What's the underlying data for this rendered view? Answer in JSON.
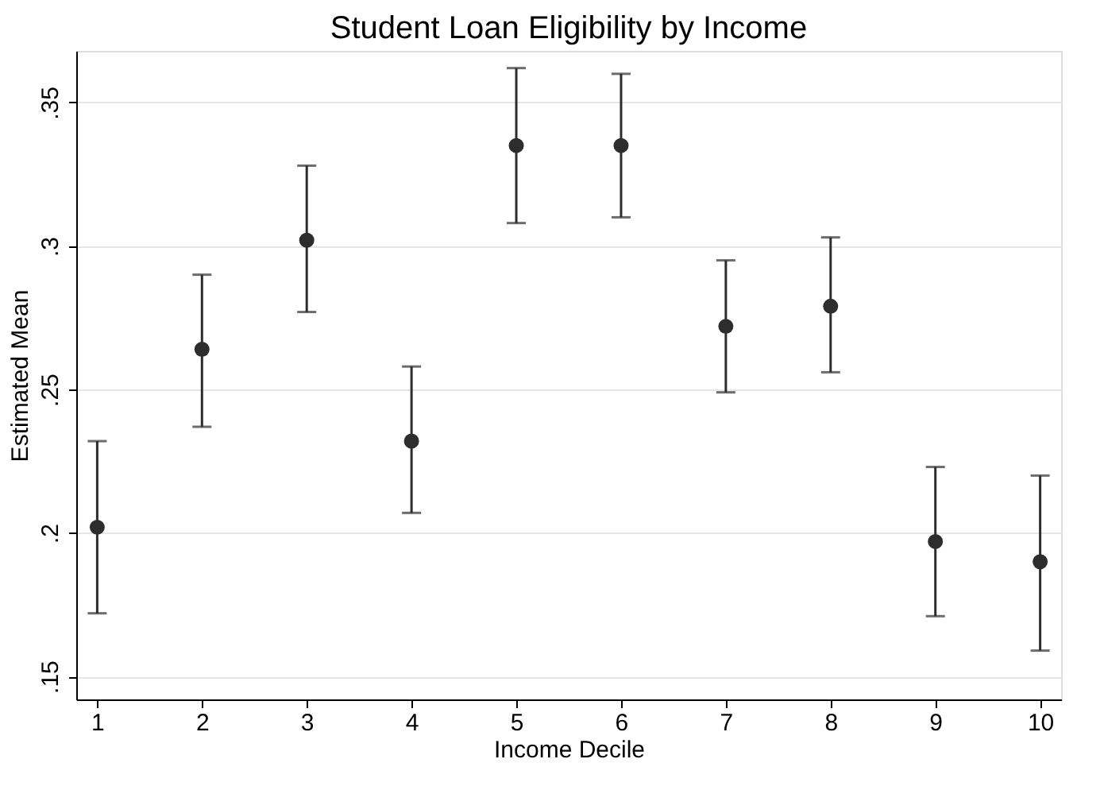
{
  "chart_data": {
    "type": "scatter",
    "title": "Student Loan Eligibility by Income",
    "xlabel": "Income Decile",
    "ylabel": "Estimated Mean",
    "x": [
      1,
      2,
      3,
      4,
      5,
      6,
      7,
      8,
      9,
      10
    ],
    "series": [
      {
        "color": "#2d2d2d",
        "values": [
          0.202,
          0.264,
          0.302,
          0.232,
          0.335,
          0.335,
          0.272,
          0.279,
          0.197,
          0.19
        ],
        "errors": [
          [
            0.172,
            0.232
          ],
          [
            0.237,
            0.29
          ],
          [
            0.277,
            0.328
          ],
          [
            0.207,
            0.258
          ],
          [
            0.308,
            0.362
          ],
          [
            0.31,
            0.36
          ],
          [
            0.249,
            0.295
          ],
          [
            0.256,
            0.303
          ],
          [
            0.171,
            0.223
          ],
          [
            0.159,
            0.22
          ]
        ]
      }
    ],
    "xlim": [
      0.8,
      10.2
    ],
    "xticks": [
      1,
      2,
      3,
      4,
      5,
      6,
      7,
      8,
      9,
      10
    ],
    "ylim": [
      0.142,
      0.368
    ],
    "yticks": [
      {
        "value": 0.15,
        "label": ".15"
      },
      {
        "value": 0.2,
        "label": ".2"
      },
      {
        "value": 0.25,
        "label": ".25"
      },
      {
        "value": 0.3,
        "label": ".3"
      },
      {
        "value": 0.35,
        "label": ".35"
      }
    ],
    "grid": "y",
    "marker": "circle"
  }
}
